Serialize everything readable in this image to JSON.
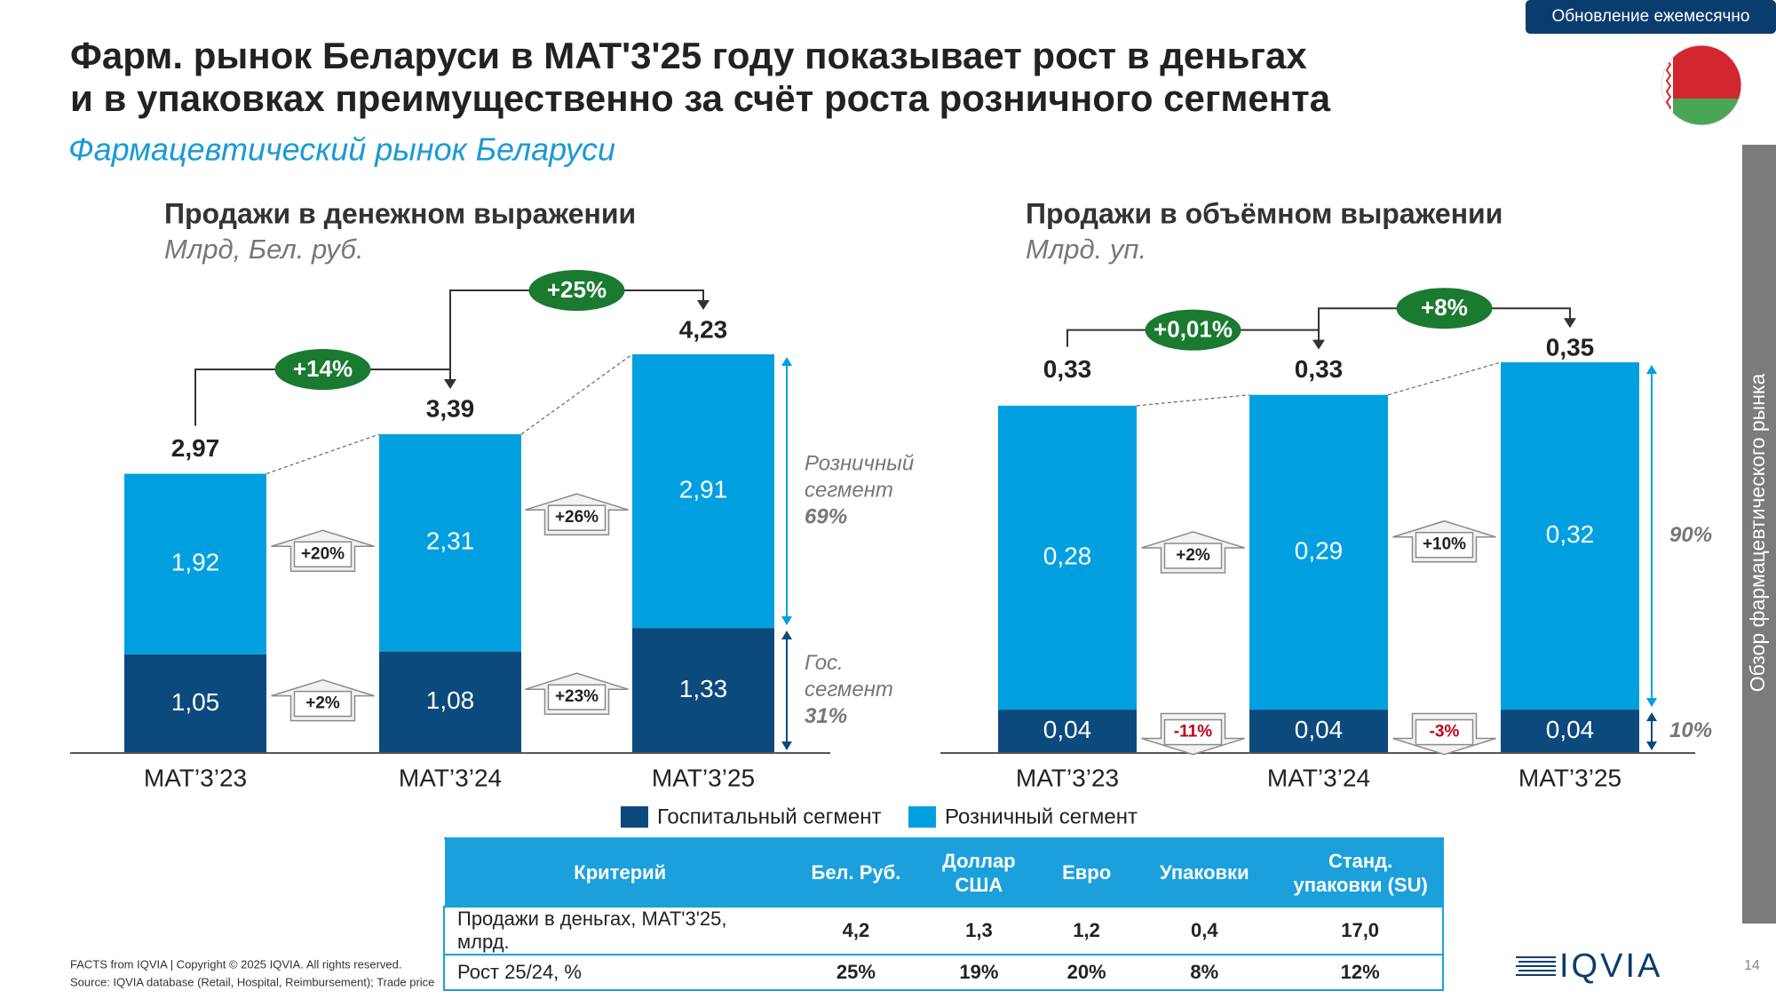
{
  "header": {
    "badge": "Обновление ежемесячно",
    "title": [
      "Фарм. рынок Беларуси в MAT'3'25 году показывает рост в деньгах",
      "и в упаковках преимущественно за счёт роста розничного сегмента"
    ],
    "subtitle": "Фармацевтический рынок Беларуси",
    "side_label": "Обзор фармацевтического рынка"
  },
  "chart_data": [
    {
      "type": "stacked_bar",
      "title": "Продажи в денежном выражении",
      "subtitle": "Млрд, Бел. руб.",
      "categories": [
        "MAT’3’23",
        "MAT’3’24",
        "MAT’3’25"
      ],
      "series": [
        {
          "name": "Госпитальный сегмент",
          "color": "#0c4a7d",
          "values": [
            1.05,
            1.08,
            1.33
          ],
          "value_labels": [
            "1,05",
            "1,08",
            "1,33"
          ],
          "growth_labels": [
            "+2%",
            "+23%"
          ],
          "share_label": [
            "Гос.",
            "сегмент",
            "31%"
          ]
        },
        {
          "name": "Розничный сегмент",
          "color": "#00a0e0",
          "values": [
            1.92,
            2.31,
            2.91
          ],
          "value_labels": [
            "1,92",
            "2,31",
            "2,91"
          ],
          "growth_labels": [
            "+20%",
            "+26%"
          ],
          "share_label": [
            "Розничный",
            "сегмент",
            "69%"
          ]
        }
      ],
      "totals": [
        2.97,
        3.39,
        4.23
      ],
      "total_labels": [
        "2,97",
        "3,39",
        "4,23"
      ],
      "total_growth_labels": [
        "+14%",
        "+25%"
      ]
    },
    {
      "type": "stacked_bar",
      "title": "Продажи в объёмном выражении",
      "subtitle": "Млрд. уп.",
      "categories": [
        "MAT’3’23",
        "MAT’3’24",
        "MAT’3’25"
      ],
      "series": [
        {
          "name": "Госпитальный сегмент",
          "color": "#0c4a7d",
          "values": [
            0.04,
            0.04,
            0.04
          ],
          "value_labels": [
            "0,04",
            "0,04",
            "0,04"
          ],
          "growth_labels": [
            "-11%",
            "-3%"
          ],
          "share_label": [
            "10%"
          ]
        },
        {
          "name": "Розничный сегмент",
          "color": "#00a0e0",
          "values": [
            0.28,
            0.29,
            0.32
          ],
          "value_labels": [
            "0,28",
            "0,29",
            "0,32"
          ],
          "growth_labels": [
            "+2%",
            "+10%"
          ],
          "share_label": [
            "90%"
          ]
        }
      ],
      "totals": [
        0.33,
        0.33,
        0.35
      ],
      "total_labels": [
        "0,33",
        "0,33",
        "0,35"
      ],
      "total_growth_labels": [
        "+0,01%",
        "+8%"
      ]
    }
  ],
  "table": {
    "header": [
      "Критерий",
      "Бел. Руб.",
      "Доллар США",
      "Евро",
      "Упаковки",
      "Станд. упаковки (SU)"
    ],
    "rows": [
      [
        "Продажи в деньгах, MAT'3'25, млрд.",
        "4,2",
        "1,3",
        "1,2",
        "0,4",
        "17,0"
      ],
      [
        "Рост 25/24, %",
        "25%",
        "19%",
        "20%",
        "8%",
        "12%"
      ]
    ]
  },
  "footer": {
    "copyright": "FACTS from IQVIA | Copyright © 2025 IQVIA. All rights reserved.",
    "source": "Source: IQVIA database (Retail, Hospital, Reimbursement); Trade price",
    "page": "14",
    "logo": "IQVIA"
  }
}
